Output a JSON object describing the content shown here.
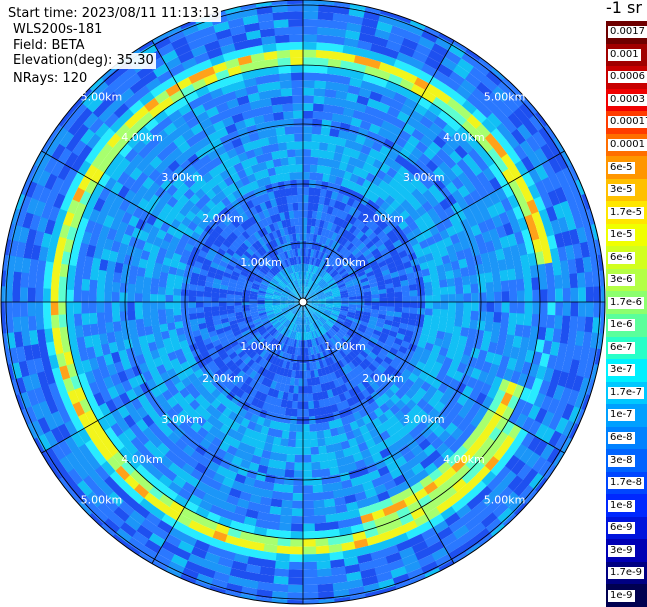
{
  "header": {
    "start_time": "Start time: 2023/08/11 11:13:13",
    "instrument": "WLS200s-181",
    "field": "Field: BETA",
    "elevation": "Elevation(deg): 35.30",
    "nrays": "NRays: 120"
  },
  "colorbar": {
    "units": "-1 sr",
    "labels": [
      "0.0017",
      "0.001",
      "0.0006",
      "0.0003",
      "0.00017",
      "0.0001",
      "6e-5",
      "3e-5",
      "1.7e-5",
      "1e-5",
      "6e-6",
      "3e-6",
      "1.7e-6",
      "1e-6",
      "6e-7",
      "3e-7",
      "1.7e-7",
      "1e-7",
      "6e-8",
      "3e-8",
      "1.7e-8",
      "1e-8",
      "6e-9",
      "3e-9",
      "1.7e-9",
      "1e-9"
    ],
    "colors": [
      "#6e0000",
      "#a00000",
      "#c80000",
      "#f00000",
      "#ff3c00",
      "#ff6e00",
      "#ff9600",
      "#ffc000",
      "#ffe600",
      "#f0ff00",
      "#d2ff1e",
      "#b4ff46",
      "#8cff6e",
      "#5aff9b",
      "#28ffc8",
      "#00f0ff",
      "#00c8ff",
      "#00a0ff",
      "#0082ff",
      "#0064ff",
      "#0046ff",
      "#0028ff",
      "#0014dc",
      "#0000b4",
      "#000082",
      "#000050"
    ]
  },
  "chart_data": {
    "type": "ppi",
    "title": "",
    "field": "BETA",
    "elevation_deg": 35.3,
    "n_rays": 120,
    "range_rings_km": [
      1,
      2,
      3,
      4,
      5
    ],
    "ring_labels": [
      "1.00km",
      "2.00km",
      "3.00km",
      "4.00km",
      "5.00km"
    ],
    "max_range_km": 5.2,
    "spokes_deg": [
      0,
      30,
      60,
      90,
      120,
      150,
      180,
      210,
      240,
      270,
      300,
      330
    ],
    "background_beta": "1e-7",
    "features": [
      {
        "name": "aerosol-ring",
        "range_km": [
          4.0,
          4.35
        ],
        "beta": "1e-5",
        "azimuth_deg": [
          120,
          420
        ]
      },
      {
        "name": "aerosol-arc-east",
        "range_km": [
          3.75,
          4.05
        ],
        "beta": "1.7e-5",
        "azimuth_deg": [
          110,
          165
        ]
      },
      {
        "name": "inner-clear-zone",
        "range_km": [
          0.0,
          0.55
        ],
        "beta": "1e-8"
      }
    ]
  }
}
